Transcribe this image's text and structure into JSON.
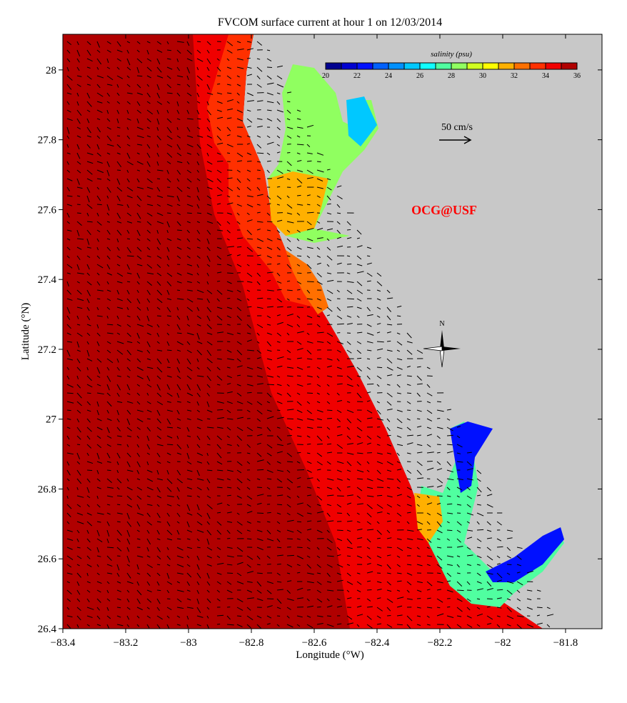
{
  "chart_data": {
    "type": "heatmap",
    "title": "FVCOM surface current at hour 1 on 12/03/2014",
    "xlabel": "Longitude (°W)",
    "ylabel": "Latitude (°N)",
    "xlim": [
      -83.4,
      -81.684
    ],
    "ylim": [
      26.4,
      28.102
    ],
    "xticks": [
      -83.4,
      -83.2,
      -83,
      -82.8,
      -82.6,
      -82.4,
      -82.2,
      -82,
      -81.8
    ],
    "xtick_labels": [
      "−83.4",
      "−83.2",
      "−83",
      "−82.8",
      "−82.6",
      "−82.4",
      "−82.2",
      "−82",
      "−81.8"
    ],
    "yticks": [
      26.4,
      26.6,
      26.8,
      27,
      27.2,
      27.4,
      27.6,
      27.8,
      28
    ],
    "ytick_labels": [
      "26.4",
      "26.6",
      "26.8",
      "27",
      "27.2",
      "27.4",
      "27.6",
      "27.8",
      "28"
    ],
    "colorbar": {
      "label": "salinity (psu)",
      "range": [
        20,
        36
      ],
      "tick_values": [
        20,
        22,
        24,
        26,
        28,
        30,
        32,
        34,
        36
      ],
      "tick_labels": [
        "20",
        "22",
        "24",
        "26",
        "28",
        "30",
        "32",
        "34",
        "36"
      ],
      "colors": [
        "#00008f",
        "#0000d0",
        "#0010ff",
        "#0060ff",
        "#0090ff",
        "#00c8ff",
        "#10ffff",
        "#50ffa0",
        "#90ff60",
        "#d0ff20",
        "#ffff00",
        "#ffb000",
        "#ff7000",
        "#ff3000",
        "#f00000",
        "#b00000"
      ]
    },
    "scale_arrow_label": "50 cm/s",
    "watermark": "OCG@USF",
    "compass_label": "N",
    "land_color": "#c8c8c8"
  }
}
